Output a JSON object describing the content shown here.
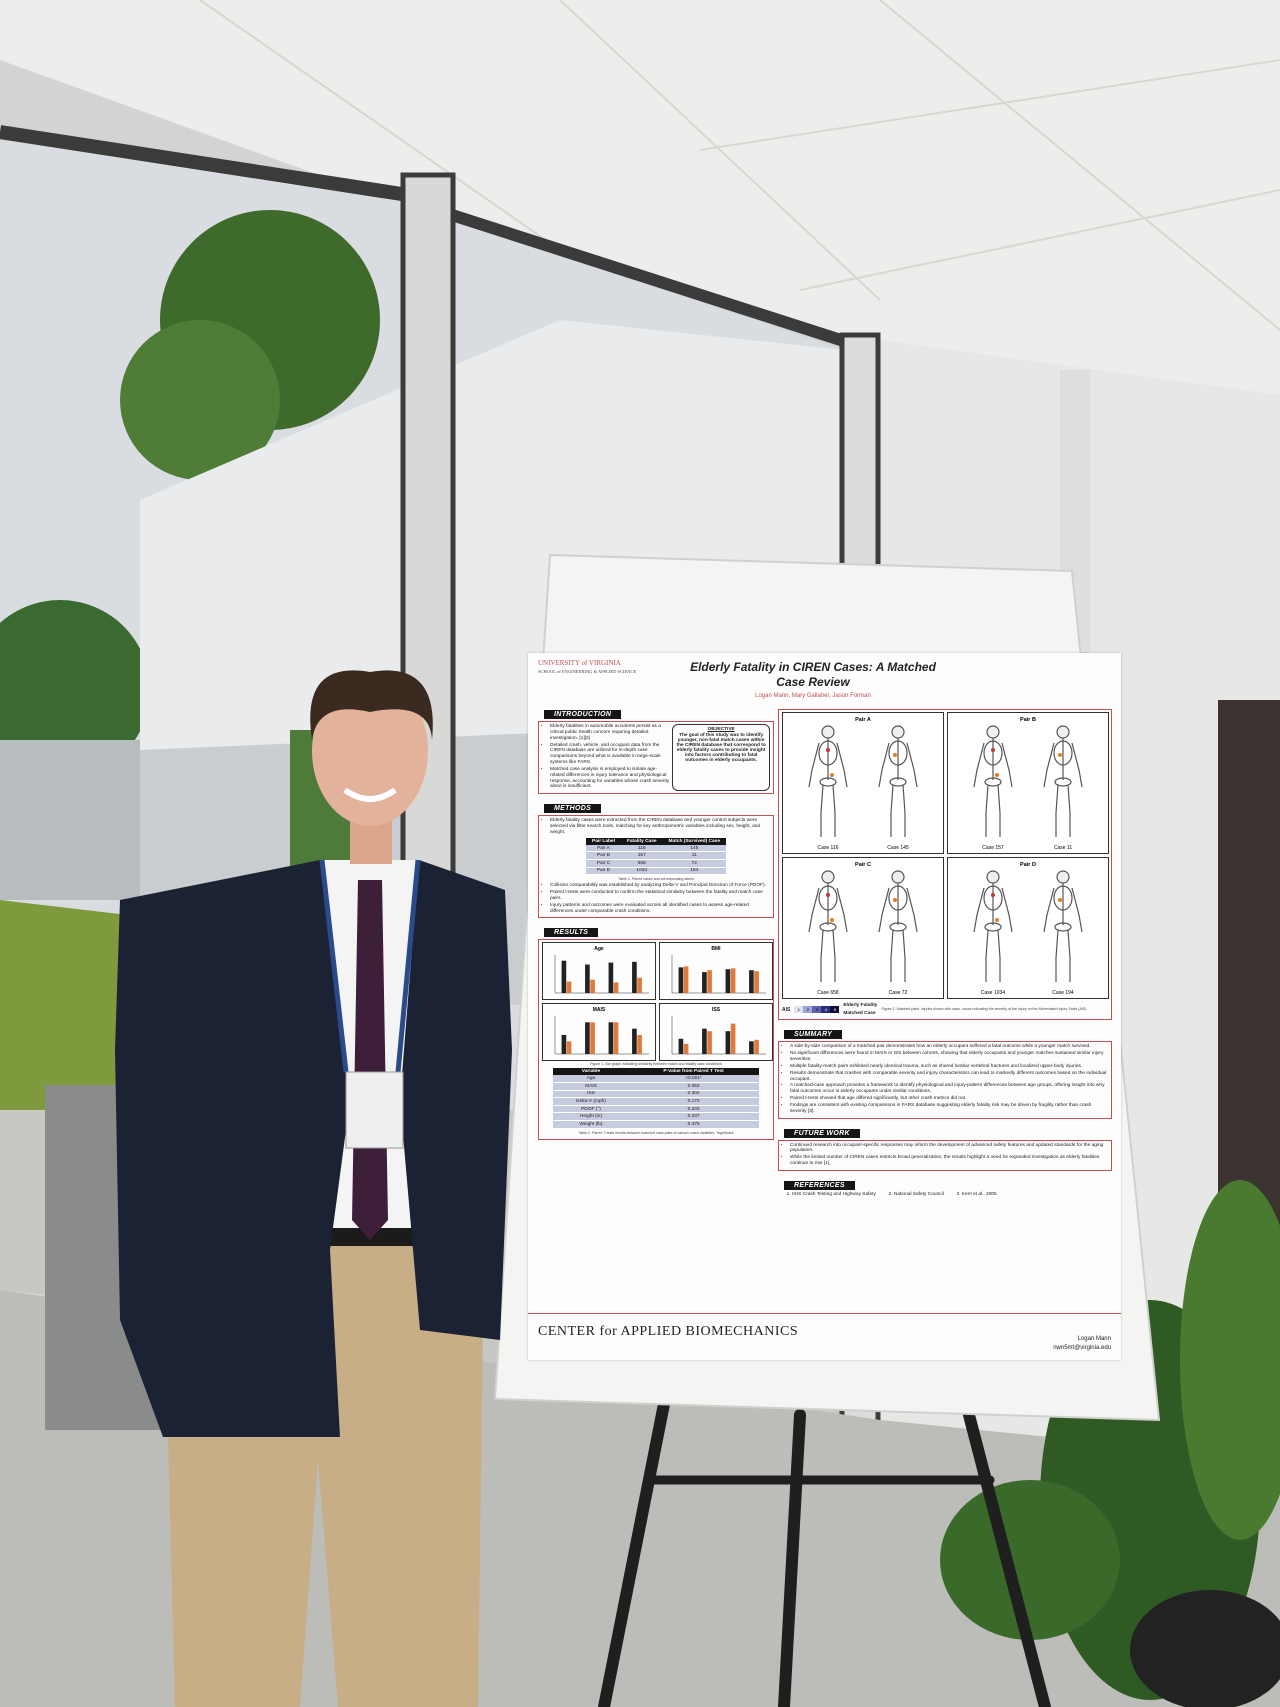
{
  "poster": {
    "logo": {
      "university": "UNIVERSITY of VIRGINIA",
      "school": "SCHOOL of ENGINEERING & APPLIED SCIENCE"
    },
    "title": "Elderly Fatality in CIREN Cases: A Matched Case Review",
    "authors": "Logan Mann, Mary Gallaher, Jason Forman",
    "introduction": {
      "heading": "INTRODUCTION",
      "bullets": [
        "Elderly fatalities in automobile accidents persist as a critical public health concern requiring detailed investigation. [1][2]",
        "Detailed crash, vehicle, and occupant data from the CIREN database are utilized for in-depth case comparisons beyond what is available in large-scale systems like FARS.",
        "Matched case analysis is employed to isolate age-related differences in injury tolerance and physiological response, accounting for variables whose crash severity alone is insufficient."
      ]
    },
    "objective": {
      "heading": "OBJECTIVE",
      "text": "The goal of this study was to identify younger, non-fatal match cases within the CIREN database that correspond to elderly fatality cases to provide insight into factors contributing to fatal outcomes in elderly occupants."
    },
    "methods": {
      "heading": "METHODS",
      "bullets_before": [
        "Elderly fatality cases were extracted from the CIREN database and younger control subjects were selected via filter search tools, matching for key anthropometric variables including sex, height, and weight."
      ],
      "pair_table": {
        "header": [
          "Pair Label",
          "Fatality Case",
          "Match (Survived) Case"
        ],
        "rows": [
          [
            "Pair A",
            "116",
            "145"
          ],
          [
            "Pair B",
            "157",
            "11"
          ],
          [
            "Pair C",
            "658",
            "72"
          ],
          [
            "Pair D",
            "1034",
            "194"
          ]
        ]
      },
      "table_caption": "Table 1. Paired cases and corresponding labels",
      "bullets_after": [
        "Collision comparability was established by analyzing Delta-V and Principal Direction of Force (PDOF).",
        "Paired t-tests were conducted to confirm the statistical similarity between the fatality and match case pairs.",
        "Injury patterns and outcomes were evaluated across all identified cases to assess age-related differences under comparable crash conditions."
      ]
    },
    "results": {
      "heading": "RESULTS",
      "charts": [
        {
          "title": "Age",
          "ylim": [
            0,
            100
          ],
          "series": [
            {
              "color": "#222222",
              "values": [
                85,
                75,
                80,
                82
              ]
            },
            {
              "color": "#e07a3c",
              "values": [
                30,
                35,
                28,
                40
              ]
            }
          ]
        },
        {
          "title": "BMI",
          "ylim": [
            0,
            40
          ],
          "series": [
            {
              "color": "#222222",
              "values": [
                27,
                22,
                25,
                24
              ]
            },
            {
              "color": "#e07a3c",
              "values": [
                28,
                24,
                26,
                23
              ]
            }
          ]
        },
        {
          "title": "MAIS",
          "ylim": [
            0,
            6
          ],
          "series": [
            {
              "color": "#222222",
              "values": [
                3,
                5,
                5,
                4
              ]
            },
            {
              "color": "#e07a3c",
              "values": [
                2,
                5,
                5,
                3
              ]
            }
          ]
        },
        {
          "title": "ISS",
          "ylim": [
            0,
            75
          ],
          "series": [
            {
              "color": "#222222",
              "values": [
                30,
                50,
                45,
                25
              ]
            },
            {
              "color": "#e07a3c",
              "values": [
                20,
                45,
                60,
                28
              ]
            }
          ]
        }
      ],
      "figure_caption": "Figure 1. Bar graph indicating similarity between match and fatality case conditions",
      "ttest_table": {
        "header": [
          "Variable",
          "P-Value from Paired T Test"
        ],
        "rows": [
          [
            "Age",
            "<0.001*"
          ],
          [
            "MAIS",
            "0.352"
          ],
          [
            "ISS",
            "0.302"
          ],
          [
            "Delta-V (mph)",
            "0.170"
          ],
          [
            "PDOF (°)",
            "0.203"
          ],
          [
            "Height (in)",
            "0.337"
          ],
          [
            "Weight (lb)",
            "0.476"
          ]
        ]
      },
      "table_caption": "Table 2. Paired T tests results between matched case pairs of various crash variables, *significant"
    },
    "figure2": {
      "pairs": [
        {
          "label": "Pair A",
          "cases": [
            "Case 116",
            "Case 145"
          ]
        },
        {
          "label": "Pair B",
          "cases": [
            "Case 157",
            "Case 11"
          ]
        },
        {
          "label": "Pair C",
          "cases": [
            "Case 658",
            "Case 72"
          ]
        },
        {
          "label": "Pair D",
          "cases": [
            "Case 1034",
            "Case 194"
          ]
        }
      ],
      "ais_label": "AIS",
      "ais_levels": [
        "1",
        "2",
        "3",
        "4",
        "5"
      ],
      "legend": [
        "Elderly Fatality",
        "Matched Case"
      ],
      "caption": "Figure 2. Matched pairs' injuries shown with stars, colors indicating the severity of the injury on the Abbreviated Injury Scale (AIS)"
    },
    "summary": {
      "heading": "SUMMARY",
      "bullets": [
        "A side-by-side comparison of a matched pair demonstrates how an elderly occupant suffered a fatal outcome while a younger match survived.",
        "No significant differences were found in MAIS or ISS between cohorts, showing that elderly occupants and younger matches sustained similar injury severities.",
        "Multiple fatality-match pairs exhibited nearly identical trauma, such as shared lumbar vertebral fractures and localized upper-body injuries.",
        "Results demonstrate that crashes with comparable severity and injury characteristics can lead to markedly different outcomes based on the individual occupant.",
        "A matched-case approach provides a framework to identify physiological and injury-pattern differences between age groups, offering insight into why fatal outcomes occur in elderly occupants under similar conditions.",
        "Paired t-tests showed that age differed significantly, but other crash metrics did not.",
        "Findings are consistent with existing comparisons in FARS database suggesting elderly fatality risk may be driven by fragility rather than crash severity [3]."
      ]
    },
    "future_work": {
      "heading": "FUTURE WORK",
      "bullets": [
        "Continued research into occupant-specific responses may inform the development of advanced safety features and updated standards for the aging population.",
        "While the limited number of CIREN cases restricts broad generalization, the results highlight a need for expanded investigation as elderly fatalities continue to rise [1]."
      ]
    },
    "references": {
      "heading": "REFERENCES",
      "items": [
        "IIHS Crash Testing and Highway Safety",
        "National Safety Council",
        "Kent et al., 2005"
      ]
    },
    "footer": {
      "center": "CENTER for APPLIED BIOMECHANICS",
      "name": "Logan Mann",
      "email": "nwn5mt@virginia.edu"
    }
  }
}
